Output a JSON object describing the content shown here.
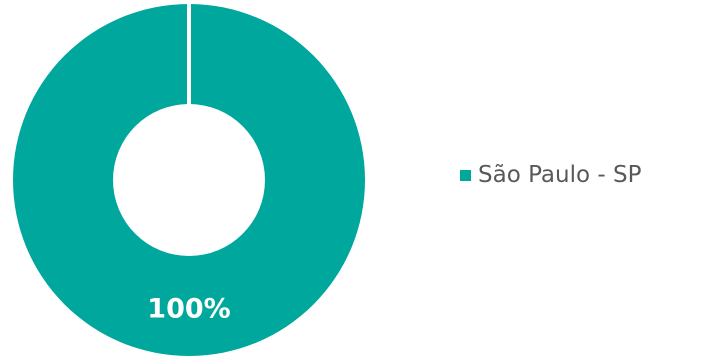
{
  "chart_data": {
    "type": "pie",
    "variant": "donut",
    "title": "",
    "slices": [
      {
        "label": "São Paulo - SP",
        "value": 100,
        "display": "100%",
        "color": "#00A79D"
      }
    ],
    "legend_position": "right",
    "background": "#ffffff",
    "separator_color": "#ffffff"
  }
}
